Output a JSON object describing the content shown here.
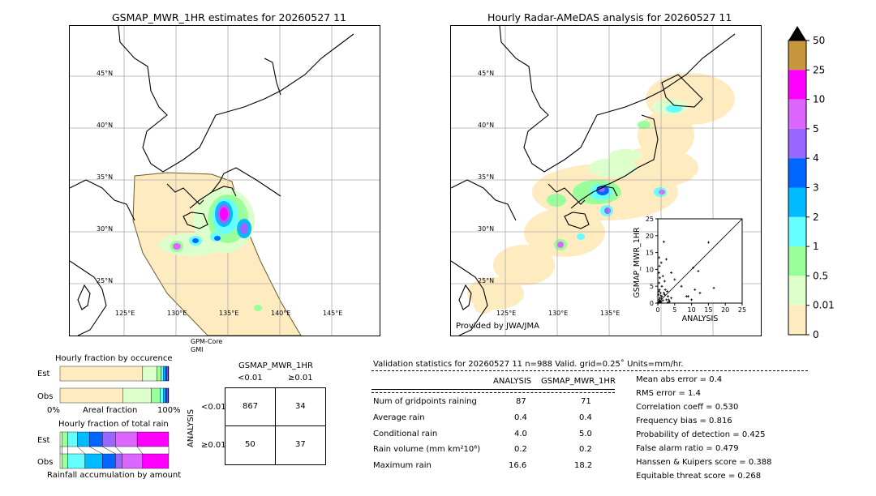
{
  "left_map": {
    "title": "GSMAP_MWR_1HR estimates for 20260527 11",
    "lat_labels": [
      "45°N",
      "40°N",
      "35°N",
      "30°N",
      "25°N"
    ],
    "lon_labels": [
      "125°E",
      "130°E",
      "135°E",
      "140°E",
      "145°E"
    ],
    "sensor_label_1": "GPM-Core",
    "sensor_label_2": "GMI"
  },
  "right_map": {
    "title": "Hourly Radar-AMeDAS analysis for 20260527 11",
    "lat_labels": [
      "45°N",
      "40°N",
      "35°N",
      "30°N",
      "25°N"
    ],
    "lon_labels": [
      "125°E",
      "130°E",
      "135°E"
    ],
    "credit": "Provided by JWA/JMA"
  },
  "colorbar": {
    "labels": [
      "50",
      "25",
      "10",
      "5",
      "4",
      "3",
      "2",
      "1",
      "0.5",
      "0.01",
      "0"
    ],
    "colors": [
      "#c8963c",
      "#ff00ff",
      "#dd66ff",
      "#9966ff",
      "#0066ff",
      "#00bbff",
      "#66ffff",
      "#99ff99",
      "#ddffcc",
      "#ffebc0"
    ]
  },
  "scatter": {
    "ylabel": "GSMAP_MWR_1HR",
    "xlabel": "ANALYSIS",
    "ticks": [
      "0",
      "5",
      "10",
      "15",
      "20",
      "25"
    ]
  },
  "chart_data": {
    "type": "scatter",
    "xlabel": "ANALYSIS",
    "ylabel": "GSMAP_MWR_1HR",
    "xlim": [
      0,
      25
    ],
    "ylim": [
      0,
      25
    ],
    "points": [
      [
        0.2,
        0.1
      ],
      [
        0.3,
        0.4
      ],
      [
        0.5,
        0.2
      ],
      [
        0.4,
        1.0
      ],
      [
        0.6,
        1.5
      ],
      [
        0.8,
        0.5
      ],
      [
        1.0,
        0.3
      ],
      [
        1.2,
        2.0
      ],
      [
        0.2,
        2.5
      ],
      [
        0.3,
        3.5
      ],
      [
        0.5,
        4.0
      ],
      [
        0.4,
        6.0
      ],
      [
        0.6,
        7.5
      ],
      [
        0.3,
        9.0
      ],
      [
        0.5,
        11.0
      ],
      [
        1.0,
        12.0
      ],
      [
        1.5,
        8.0
      ],
      [
        2.0,
        6.5
      ],
      [
        1.8,
        3.0
      ],
      [
        2.5,
        1.0
      ],
      [
        3.0,
        2.0
      ],
      [
        3.5,
        0.5
      ],
      [
        4.0,
        1.5
      ],
      [
        1.2,
        5.0
      ],
      [
        2.2,
        4.0
      ],
      [
        0.8,
        3.0
      ],
      [
        1.5,
        0.8
      ],
      [
        2.8,
        3.5
      ],
      [
        1.8,
        18.2
      ],
      [
        2.5,
        13.0
      ],
      [
        4.0,
        9.0
      ],
      [
        5.0,
        7.0
      ],
      [
        7.0,
        5.0
      ],
      [
        8.5,
        2.0
      ],
      [
        10.0,
        1.0
      ],
      [
        10.5,
        10.5
      ],
      [
        12.0,
        9.5
      ],
      [
        11.0,
        4.0
      ],
      [
        12.5,
        3.0
      ],
      [
        16.6,
        4.5
      ],
      [
        15.0,
        18.0
      ],
      [
        9.0,
        2.0
      ],
      [
        3.0,
        0.2
      ],
      [
        0.1,
        0.1
      ],
      [
        0.7,
        0.7
      ],
      [
        1.1,
        1.4
      ],
      [
        0.9,
        2.2
      ],
      [
        2.0,
        2.5
      ],
      [
        0.4,
        13.5
      ],
      [
        3.2,
        1.0
      ]
    ]
  },
  "occurrence": {
    "title": "Hourly fraction by occurence",
    "row_est": "Est",
    "row_obs": "Obs",
    "axis_left": "0%",
    "axis_mid": "Areal fraction",
    "axis_right": "100%",
    "est_fractions": [
      0.76,
      0.13,
      0.04,
      0.02,
      0.02,
      0.015,
      0.01,
      0.005
    ],
    "obs_fractions": [
      0.58,
      0.26,
      0.08,
      0.03,
      0.02,
      0.015,
      0.01,
      0.005
    ]
  },
  "total_rain": {
    "title": "Hourly fraction of total rain",
    "row_est": "Est",
    "row_obs": "Obs",
    "footer": "Rainfall accumulation by amount",
    "est_fractions": [
      0.02,
      0.05,
      0.09,
      0.11,
      0.12,
      0.12,
      0.2,
      0.29
    ],
    "obs_fractions": [
      0.02,
      0.05,
      0.16,
      0.16,
      0.12,
      0.06,
      0.19,
      0.24
    ]
  },
  "contingency": {
    "title": "GSMAP_MWR_1HR",
    "col_lt": "<0.01",
    "col_ge": "≥0.01",
    "side_label": "ANALYSIS",
    "row_lt": "<0.01",
    "row_ge": "≥0.01",
    "v11": "867",
    "v12": "34",
    "v21": "50",
    "v22": "37"
  },
  "validation": {
    "header": "Validation statistics for 20260527 11  n=988 Valid. grid=0.25˚ Units=mm/hr.",
    "col_analysis": "ANALYSIS",
    "col_gsmap": "GSMAP_MWR_1HR",
    "rows": [
      {
        "label": "Num of gridpoints raining",
        "a": "87",
        "g": "71"
      },
      {
        "label": "Average rain",
        "a": "0.4",
        "g": "0.4"
      },
      {
        "label": "Conditional rain",
        "a": "4.0",
        "g": "5.0"
      },
      {
        "label": "Rain volume (mm km²10⁶)",
        "a": "0.2",
        "g": "0.2"
      },
      {
        "label": "Maximum rain",
        "a": "16.6",
        "g": "18.2"
      }
    ],
    "scores": [
      "Mean abs error =    0.4",
      "RMS error =    1.4",
      "Correlation coeff =  0.530",
      "Frequency bias =  0.816",
      "Probability of detection =  0.425",
      "False alarm ratio =  0.479",
      "Hanssen & Kuipers score =  0.388",
      "Equitable threat score =  0.268"
    ]
  }
}
